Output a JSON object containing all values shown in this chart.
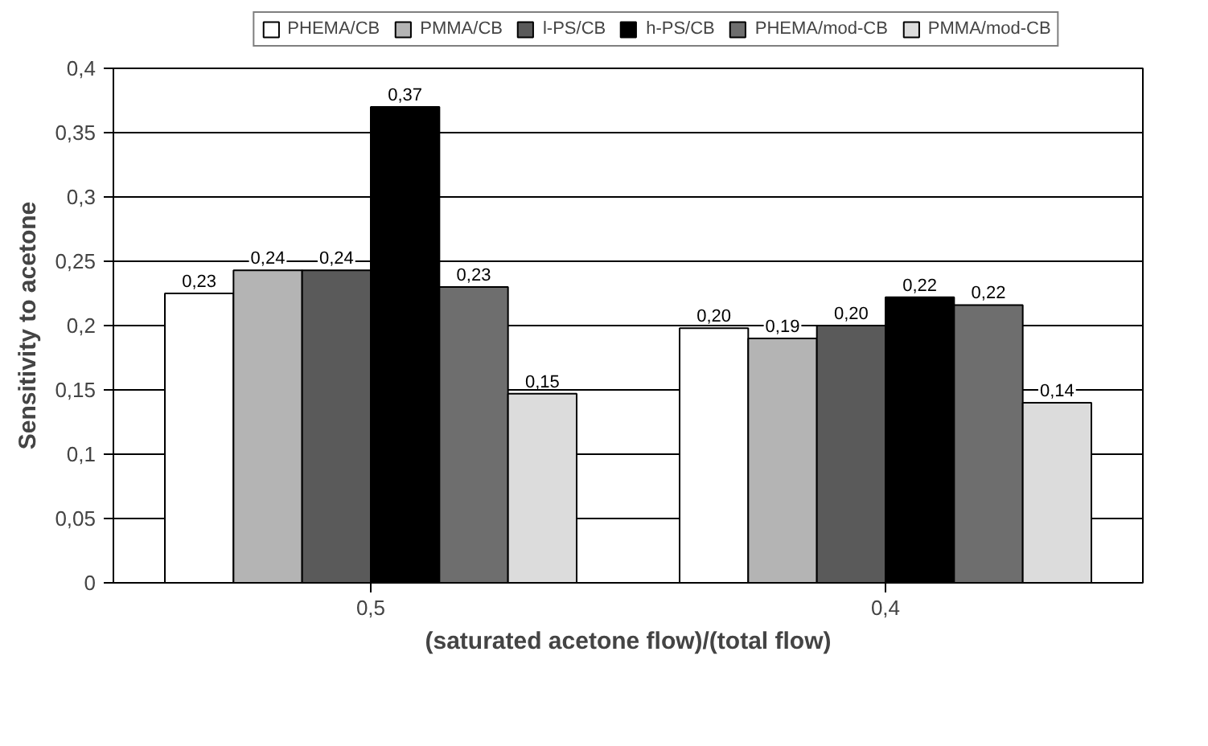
{
  "chart_data": {
    "type": "bar",
    "xlabel": "(saturated acetone flow)/(total flow)",
    "ylabel": "Sensitivity to acetone",
    "categories": [
      "0,5",
      "0,4"
    ],
    "series": [
      {
        "name": "PHEMA/CB",
        "color": "#ffffff",
        "values": [
          0.225,
          0.198
        ],
        "value_labels": [
          "0,23",
          "0,20"
        ]
      },
      {
        "name": "PMMA/CB",
        "color": "#b4b4b4",
        "values": [
          0.243,
          0.19
        ],
        "value_labels": [
          "0,24",
          "0,19"
        ]
      },
      {
        "name": "l-PS/CB",
        "color": "#5a5a5a",
        "values": [
          0.243,
          0.2
        ],
        "value_labels": [
          "0,24",
          "0,20"
        ]
      },
      {
        "name": "h-PS/CB",
        "color": "#000000",
        "values": [
          0.37,
          0.222
        ],
        "value_labels": [
          "0,37",
          "0,22"
        ]
      },
      {
        "name": "PHEMA/mod-CB",
        "color": "#6e6e6e",
        "values": [
          0.23,
          0.216
        ],
        "value_labels": [
          "0,23",
          "0,22"
        ]
      },
      {
        "name": "PMMA/mod-CB",
        "color": "#dcdcdc",
        "values": [
          0.147,
          0.14
        ],
        "value_labels": [
          "0,15",
          "0,14"
        ]
      }
    ],
    "ylim": [
      0,
      0.4
    ],
    "yticks": [
      {
        "value": 0,
        "label": "0"
      },
      {
        "value": 0.05,
        "label": "0,05"
      },
      {
        "value": 0.1,
        "label": "0,1"
      },
      {
        "value": 0.15,
        "label": "0,15"
      },
      {
        "value": 0.2,
        "label": "0,2"
      },
      {
        "value": 0.25,
        "label": "0,25"
      },
      {
        "value": 0.3,
        "label": "0,3"
      },
      {
        "value": 0.35,
        "label": "0,35"
      },
      {
        "value": 0.4,
        "label": "0,4"
      }
    ],
    "grid": "y",
    "legend": "top"
  }
}
